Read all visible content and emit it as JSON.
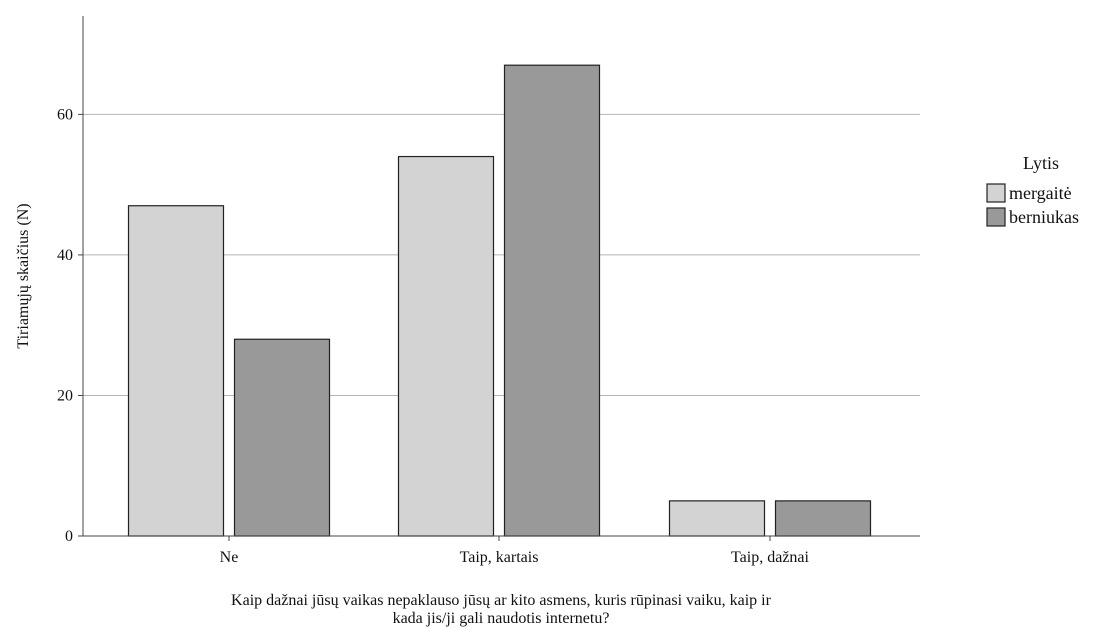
{
  "chart_data": {
    "type": "bar",
    "categories": [
      "Ne",
      "Taip, kartais",
      "Taip, dažnai"
    ],
    "series": [
      {
        "name": "mergaitė",
        "values": [
          47,
          54,
          5
        ],
        "color": "#d3d3d3"
      },
      {
        "name": "berniukas",
        "values": [
          28,
          67,
          5
        ],
        "color": "#999999"
      }
    ],
    "title": "",
    "xlabel_lines": [
      "Kaip dažnai jūsų vaikas nepaklauso jūsų ar kito asmens, kuris rūpinasi vaiku, kaip ir",
      "kada jis/ji gali naudotis internetu?"
    ],
    "ylabel": "Tiriamųjų skaičius (N)",
    "ylim": [
      0,
      74
    ],
    "yticks": [
      0,
      20,
      40,
      60
    ],
    "grid": true,
    "legend": {
      "title": "Lytis",
      "placement": "right"
    }
  }
}
